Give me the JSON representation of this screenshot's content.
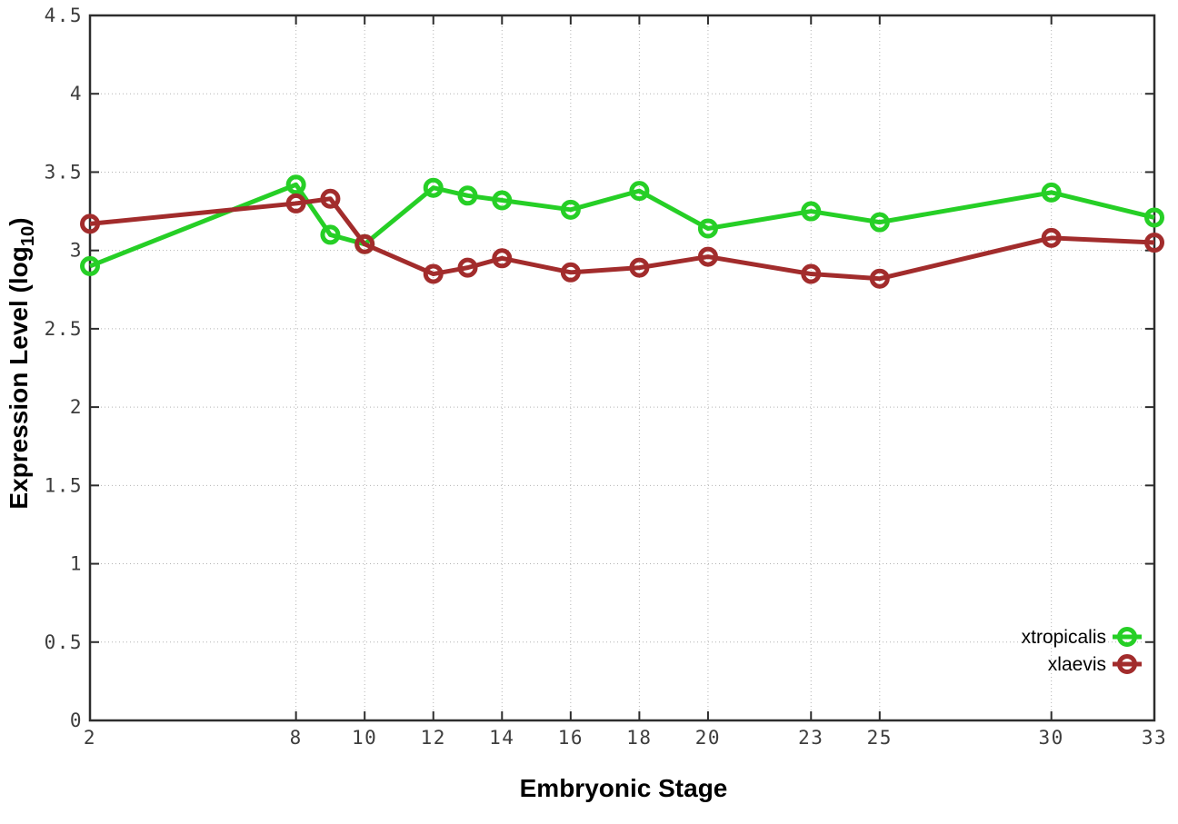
{
  "figure": {
    "xlabel": "Embryonic Stage",
    "ylabel_prefix": "Expression Level (log",
    "ylabel_sub": "10",
    "ylabel_suffix": ")"
  },
  "chart_data": {
    "type": "line",
    "title": "",
    "xlabel": "Embryonic Stage",
    "ylabel": "Expression Level (log10)",
    "x": [
      2,
      8,
      9,
      10,
      12,
      13,
      14,
      16,
      18,
      20,
      23,
      25,
      30,
      33
    ],
    "series": [
      {
        "name": "xtropicalis",
        "color": "#26cf26",
        "values": [
          2.9,
          3.42,
          3.1,
          3.04,
          3.4,
          3.35,
          3.32,
          3.26,
          3.38,
          3.14,
          3.25,
          3.18,
          3.37,
          3.21
        ]
      },
      {
        "name": "xlaevis",
        "color": "#a22c2c",
        "values": [
          3.17,
          3.3,
          3.33,
          3.04,
          2.85,
          2.89,
          2.95,
          2.86,
          2.89,
          2.96,
          2.85,
          2.82,
          3.08,
          3.05
        ]
      }
    ],
    "xticks": [
      2,
      8,
      10,
      12,
      14,
      16,
      18,
      20,
      23,
      25,
      30,
      33
    ],
    "yticks": [
      0,
      0.5,
      1,
      1.5,
      2,
      2.5,
      3,
      3.5,
      4,
      4.5
    ],
    "xlim": [
      2,
      33
    ],
    "ylim": [
      0,
      4.5
    ],
    "grid": true,
    "legend_position": "bottom-right",
    "marker": "open-circle",
    "line_width": 5,
    "grid_color": "#b3b3b3",
    "axis_color": "#2d2d2d"
  }
}
